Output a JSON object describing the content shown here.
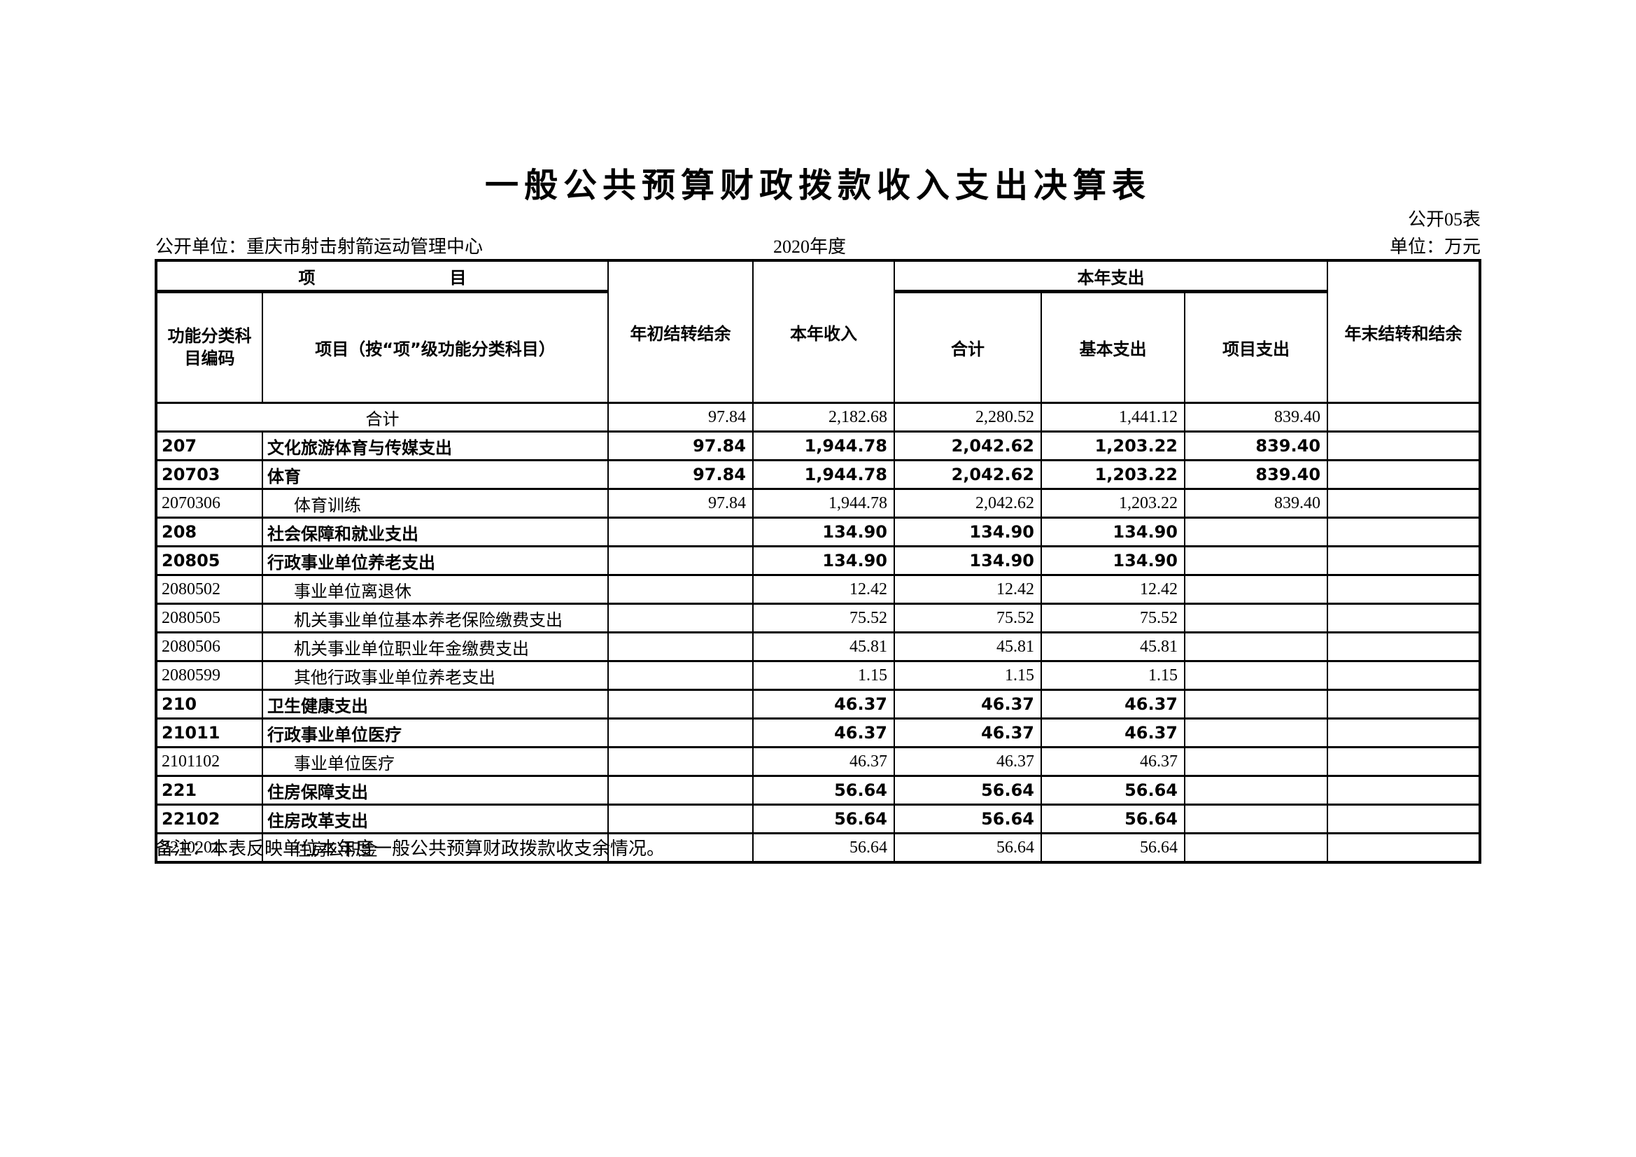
{
  "page": {
    "title": "一般公共预算财政拨款收入支出决算表",
    "table_no": "公开05表",
    "org_line": "公开单位：重庆市射击射箭运动管理中心",
    "year": "2020年度",
    "unit": "单位：万元",
    "note": "备注：本表反映单位本年度一般公共预算财政拨款收支余情况。"
  },
  "table": {
    "header": {
      "group_item": "项　　　　　　　　目",
      "col_code": "功能分类科目编码",
      "col_item": "项目（按“项”级功能分类科目）",
      "col_opening_balance": "年初结转结余",
      "col_income": "本年收入",
      "group_expense": "本年支出",
      "col_expense_total": "合计",
      "col_basic_expense": "基本支出",
      "col_project_expense": "项目支出",
      "col_yearend_balance": "年末结转和结余"
    },
    "rows": [
      {
        "code": "",
        "name": "合计",
        "total": true,
        "bold": false,
        "indent": false,
        "values": [
          "97.84",
          "2,182.68",
          "2,280.52",
          "1,441.12",
          "839.40",
          ""
        ]
      },
      {
        "code": "207",
        "name": "文化旅游体育与传媒支出",
        "total": false,
        "bold": true,
        "indent": false,
        "values": [
          "97.84",
          "1,944.78",
          "2,042.62",
          "1,203.22",
          "839.40",
          ""
        ]
      },
      {
        "code": "20703",
        "name": "体育",
        "total": false,
        "bold": true,
        "indent": false,
        "values": [
          "97.84",
          "1,944.78",
          "2,042.62",
          "1,203.22",
          "839.40",
          ""
        ]
      },
      {
        "code": "2070306",
        "name": "体育训练",
        "total": false,
        "bold": false,
        "indent": true,
        "values": [
          "97.84",
          "1,944.78",
          "2,042.62",
          "1,203.22",
          "839.40",
          ""
        ]
      },
      {
        "code": "208",
        "name": "社会保障和就业支出",
        "total": false,
        "bold": true,
        "indent": false,
        "values": [
          "",
          "134.90",
          "134.90",
          "134.90",
          "",
          ""
        ]
      },
      {
        "code": "20805",
        "name": "行政事业单位养老支出",
        "total": false,
        "bold": true,
        "indent": false,
        "values": [
          "",
          "134.90",
          "134.90",
          "134.90",
          "",
          ""
        ]
      },
      {
        "code": "2080502",
        "name": "事业单位离退休",
        "total": false,
        "bold": false,
        "indent": true,
        "values": [
          "",
          "12.42",
          "12.42",
          "12.42",
          "",
          ""
        ]
      },
      {
        "code": "2080505",
        "name": "机关事业单位基本养老保险缴费支出",
        "total": false,
        "bold": false,
        "indent": true,
        "values": [
          "",
          "75.52",
          "75.52",
          "75.52",
          "",
          ""
        ]
      },
      {
        "code": "2080506",
        "name": "机关事业单位职业年金缴费支出",
        "total": false,
        "bold": false,
        "indent": true,
        "values": [
          "",
          "45.81",
          "45.81",
          "45.81",
          "",
          ""
        ]
      },
      {
        "code": "2080599",
        "name": "其他行政事业单位养老支出",
        "total": false,
        "bold": false,
        "indent": true,
        "values": [
          "",
          "1.15",
          "1.15",
          "1.15",
          "",
          ""
        ]
      },
      {
        "code": "210",
        "name": "卫生健康支出",
        "total": false,
        "bold": true,
        "indent": false,
        "values": [
          "",
          "46.37",
          "46.37",
          "46.37",
          "",
          ""
        ]
      },
      {
        "code": "21011",
        "name": "行政事业单位医疗",
        "total": false,
        "bold": true,
        "indent": false,
        "values": [
          "",
          "46.37",
          "46.37",
          "46.37",
          "",
          ""
        ]
      },
      {
        "code": "2101102",
        "name": "事业单位医疗",
        "total": false,
        "bold": false,
        "indent": true,
        "values": [
          "",
          "46.37",
          "46.37",
          "46.37",
          "",
          ""
        ]
      },
      {
        "code": "221",
        "name": "住房保障支出",
        "total": false,
        "bold": true,
        "indent": false,
        "values": [
          "",
          "56.64",
          "56.64",
          "56.64",
          "",
          ""
        ]
      },
      {
        "code": "22102",
        "name": "住房改革支出",
        "total": false,
        "bold": true,
        "indent": false,
        "values": [
          "",
          "56.64",
          "56.64",
          "56.64",
          "",
          ""
        ]
      },
      {
        "code": "2210201",
        "name": "住房公积金",
        "total": false,
        "bold": false,
        "indent": true,
        "values": [
          "",
          "56.64",
          "56.64",
          "56.64",
          "",
          ""
        ]
      }
    ]
  }
}
